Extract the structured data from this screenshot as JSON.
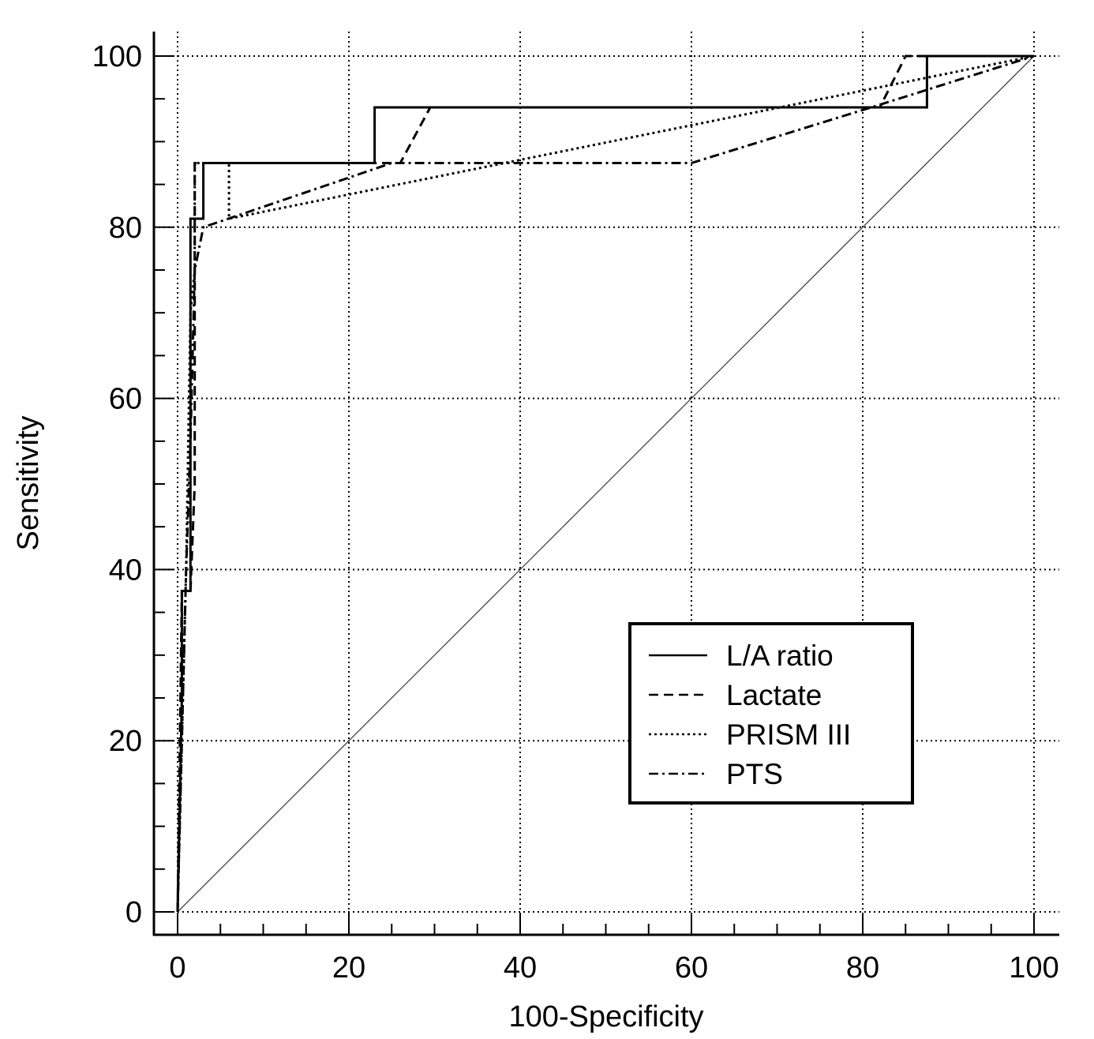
{
  "chart_data": {
    "type": "line",
    "title": "",
    "xlabel": "100-Specificity",
    "ylabel": "Sensitivity",
    "xlim": [
      0,
      100
    ],
    "ylim": [
      0,
      100
    ],
    "xticks": [
      0,
      20,
      40,
      60,
      80,
      100
    ],
    "yticks": [
      0,
      20,
      40,
      60,
      80,
      100
    ],
    "x_tick_labels": [
      "0",
      "20",
      "40",
      "60",
      "80",
      "100"
    ],
    "y_tick_labels": [
      "0",
      "20",
      "40",
      "60",
      "80",
      "100"
    ],
    "grid": true,
    "legend_position": "lower-right",
    "reference_line": {
      "x": [
        0,
        100
      ],
      "y": [
        0,
        100
      ]
    },
    "series": [
      {
        "name": "L/A ratio",
        "style": "solid",
        "x": [
          0,
          0.5,
          0.5,
          1.5,
          1.5,
          3,
          3,
          23,
          23,
          87.5,
          87.5,
          100
        ],
        "y": [
          0,
          25,
          37.5,
          37.5,
          81,
          81,
          87.5,
          87.5,
          94,
          94,
          100,
          100
        ]
      },
      {
        "name": "Lactate",
        "style": "dashed",
        "x": [
          0,
          0.5,
          1.5,
          2,
          2,
          26,
          29.5,
          82,
          85,
          100
        ],
        "y": [
          0,
          37.5,
          37.5,
          50,
          87.5,
          87.5,
          94,
          94,
          100,
          100
        ]
      },
      {
        "name": "PRISM III",
        "style": "dotted",
        "x": [
          0,
          1,
          1.5,
          2,
          2,
          6,
          6,
          100
        ],
        "y": [
          0,
          40,
          70,
          75,
          87.5,
          87.5,
          81,
          100
        ]
      },
      {
        "name": "PTS",
        "style": "dashdot",
        "x": [
          0,
          0.5,
          1,
          1.5,
          2,
          3,
          25,
          60,
          81,
          100
        ],
        "y": [
          0,
          20,
          40,
          55,
          75,
          80,
          87.5,
          87.5,
          94,
          100
        ]
      }
    ]
  }
}
